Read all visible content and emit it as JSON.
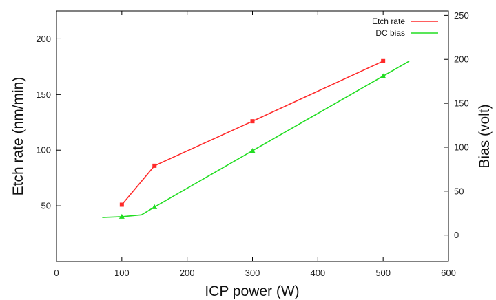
{
  "chart_data": {
    "type": "line",
    "xlabel": "ICP power (W)",
    "ylabel_left": "Etch rate (nm/min)",
    "ylabel_right": "Bias (volt)",
    "xlim": [
      0,
      600
    ],
    "ylim_left": [
      0,
      225
    ],
    "ylim_right": [
      -30,
      255
    ],
    "x_ticks": [
      0,
      100,
      200,
      300,
      400,
      500,
      600
    ],
    "y_ticks_left": [
      50,
      100,
      150,
      200
    ],
    "y_ticks_right": [
      0,
      50,
      100,
      150,
      200,
      250
    ],
    "grid": false,
    "legend_position": "top-right",
    "series": [
      {
        "name": "Etch rate",
        "axis": "left",
        "color": "#ff2a2a",
        "marker": "square",
        "x": [
          100,
          150,
          300,
          500
        ],
        "y": [
          51,
          86,
          126,
          180
        ]
      },
      {
        "name": "DC bias",
        "axis": "right",
        "color": "#22dd22",
        "marker": "triangle",
        "x": [
          70,
          100,
          130,
          150,
          300,
          500,
          540
        ],
        "y": [
          20,
          21,
          23,
          32,
          96,
          181,
          198
        ],
        "marker_x": [
          100,
          150,
          300,
          500
        ]
      }
    ]
  }
}
